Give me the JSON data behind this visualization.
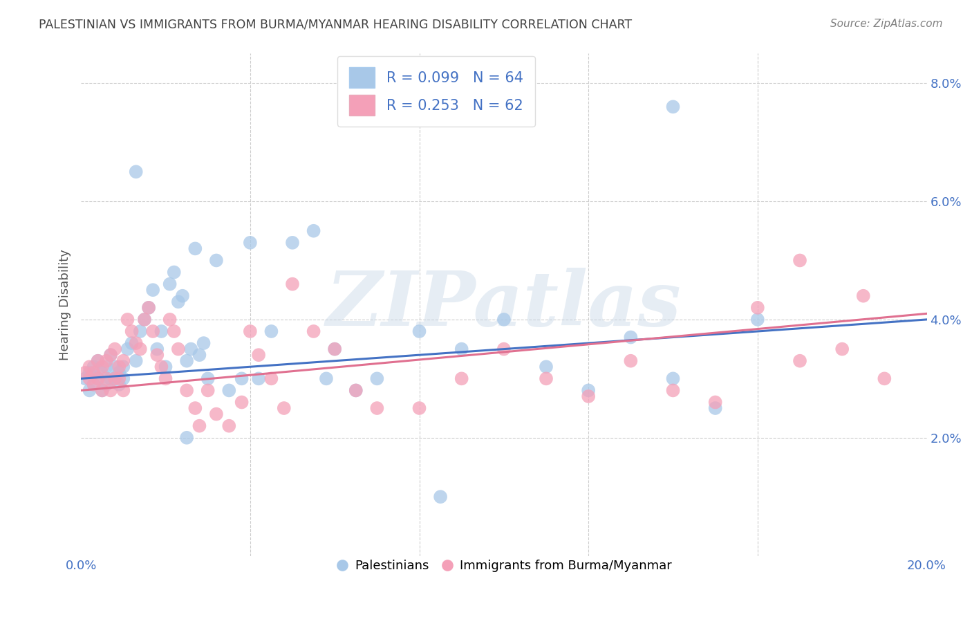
{
  "title": "PALESTINIAN VS IMMIGRANTS FROM BURMA/MYANMAR HEARING DISABILITY CORRELATION CHART",
  "source": "Source: ZipAtlas.com",
  "ylabel": "Hearing Disability",
  "watermark": "ZIPatlas",
  "xlim": [
    0.0,
    0.2
  ],
  "ylim": [
    0.0,
    0.085
  ],
  "blue_R": 0.099,
  "blue_N": 64,
  "pink_R": 0.253,
  "pink_N": 62,
  "blue_color": "#A8C8E8",
  "pink_color": "#F4A0B8",
  "blue_line_color": "#4472C4",
  "pink_line_color": "#E07090",
  "legend_text_color": "#4472C4",
  "background_color": "#FFFFFF",
  "grid_color": "#CCCCCC",
  "axis_label_color": "#4472C4",
  "title_color": "#404040",
  "source_color": "#808080",
  "blue_x": [
    0.001,
    0.002,
    0.002,
    0.003,
    0.003,
    0.004,
    0.004,
    0.005,
    0.005,
    0.006,
    0.006,
    0.007,
    0.007,
    0.008,
    0.008,
    0.009,
    0.009,
    0.01,
    0.01,
    0.011,
    0.012,
    0.013,
    0.014,
    0.015,
    0.016,
    0.017,
    0.018,
    0.019,
    0.02,
    0.021,
    0.022,
    0.023,
    0.024,
    0.025,
    0.026,
    0.027,
    0.028,
    0.029,
    0.03,
    0.032,
    0.035,
    0.038,
    0.04,
    0.042,
    0.045,
    0.05,
    0.055,
    0.058,
    0.06,
    0.065,
    0.07,
    0.08,
    0.09,
    0.1,
    0.11,
    0.12,
    0.13,
    0.14,
    0.15,
    0.16,
    0.013,
    0.025,
    0.14,
    0.085
  ],
  "blue_y": [
    0.03,
    0.031,
    0.028,
    0.032,
    0.029,
    0.033,
    0.03,
    0.031,
    0.028,
    0.032,
    0.029,
    0.034,
    0.03,
    0.032,
    0.03,
    0.029,
    0.031,
    0.03,
    0.032,
    0.035,
    0.036,
    0.033,
    0.038,
    0.04,
    0.042,
    0.045,
    0.035,
    0.038,
    0.032,
    0.046,
    0.048,
    0.043,
    0.044,
    0.033,
    0.035,
    0.052,
    0.034,
    0.036,
    0.03,
    0.05,
    0.028,
    0.03,
    0.053,
    0.03,
    0.038,
    0.053,
    0.055,
    0.03,
    0.035,
    0.028,
    0.03,
    0.038,
    0.035,
    0.04,
    0.032,
    0.028,
    0.037,
    0.03,
    0.025,
    0.04,
    0.065,
    0.02,
    0.076,
    0.01
  ],
  "pink_x": [
    0.001,
    0.002,
    0.002,
    0.003,
    0.003,
    0.004,
    0.004,
    0.005,
    0.005,
    0.006,
    0.006,
    0.007,
    0.007,
    0.008,
    0.008,
    0.009,
    0.009,
    0.01,
    0.01,
    0.011,
    0.012,
    0.013,
    0.014,
    0.015,
    0.016,
    0.017,
    0.018,
    0.019,
    0.02,
    0.021,
    0.022,
    0.023,
    0.025,
    0.027,
    0.028,
    0.03,
    0.032,
    0.035,
    0.038,
    0.04,
    0.042,
    0.045,
    0.048,
    0.05,
    0.055,
    0.06,
    0.065,
    0.07,
    0.08,
    0.09,
    0.1,
    0.11,
    0.12,
    0.13,
    0.14,
    0.15,
    0.16,
    0.17,
    0.18,
    0.19,
    0.17,
    0.185
  ],
  "pink_y": [
    0.031,
    0.03,
    0.032,
    0.029,
    0.031,
    0.033,
    0.03,
    0.032,
    0.028,
    0.033,
    0.03,
    0.034,
    0.028,
    0.035,
    0.03,
    0.032,
    0.03,
    0.028,
    0.033,
    0.04,
    0.038,
    0.036,
    0.035,
    0.04,
    0.042,
    0.038,
    0.034,
    0.032,
    0.03,
    0.04,
    0.038,
    0.035,
    0.028,
    0.025,
    0.022,
    0.028,
    0.024,
    0.022,
    0.026,
    0.038,
    0.034,
    0.03,
    0.025,
    0.046,
    0.038,
    0.035,
    0.028,
    0.025,
    0.025,
    0.03,
    0.035,
    0.03,
    0.027,
    0.033,
    0.028,
    0.026,
    0.042,
    0.033,
    0.035,
    0.03,
    0.05,
    0.044
  ]
}
